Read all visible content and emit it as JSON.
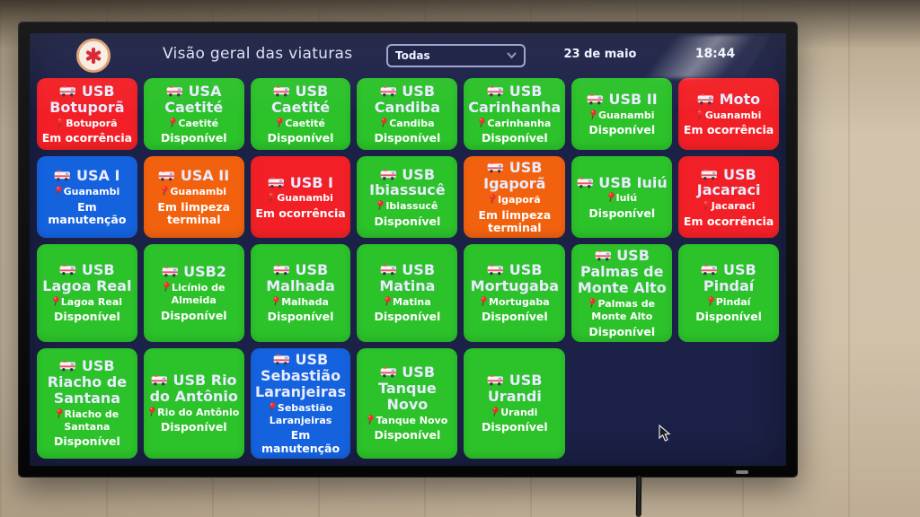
{
  "header": {
    "logo": "samu-star-of-life",
    "title": "Visão geral das viaturas",
    "filter_value": "Todas",
    "date": "23 de maio",
    "time": "18:44"
  },
  "status_colors": {
    "available": "#2cc22a",
    "occurrence": "#f22026",
    "maintenance": "#1562de",
    "cleaning": "#f2620e"
  },
  "status_labels": {
    "available": "Disponível",
    "occurrence": "Em ocorrência",
    "maintenance": "Em manutenção",
    "cleaning": "Em limpeza terminal"
  },
  "cards": [
    {
      "title": "USB Botuporã",
      "location": "Botuporã",
      "status": "Em ocorrência",
      "state": "occurrence"
    },
    {
      "title": "USA Caetité",
      "location": "Caetité",
      "status": "Disponível",
      "state": "available"
    },
    {
      "title": "USB Caetité",
      "location": "Caetité",
      "status": "Disponível",
      "state": "available"
    },
    {
      "title": "USB Candiba",
      "location": "Candiba",
      "status": "Disponível",
      "state": "available"
    },
    {
      "title": "USB Carinhanha",
      "location": "Carinhanha",
      "status": "Disponível",
      "state": "available"
    },
    {
      "title": "USB II",
      "location": "Guanambi",
      "status": "Disponível",
      "state": "available"
    },
    {
      "title": "Moto",
      "location": "Guanambi",
      "status": "Em ocorrência",
      "state": "occurrence"
    },
    {
      "title": "USA I",
      "location": "Guanambi",
      "status": "Em manutenção",
      "state": "maintenance"
    },
    {
      "title": "USA II",
      "location": "Guanambi",
      "status": "Em limpeza terminal",
      "state": "cleaning"
    },
    {
      "title": "USB I",
      "location": "Guanambi",
      "status": "Em ocorrência",
      "state": "occurrence"
    },
    {
      "title": "USB Ibiassucê",
      "location": "Ibiassucê",
      "status": "Disponível",
      "state": "available"
    },
    {
      "title": "USB Igaporã",
      "location": "Igaporã",
      "status": "Em limpeza terminal",
      "state": "cleaning"
    },
    {
      "title": "USB Iuiú",
      "location": "Iuiú",
      "status": "Disponível",
      "state": "available"
    },
    {
      "title": "USB Jacaraci",
      "location": "Jacaraci",
      "status": "Em ocorrência",
      "state": "occurrence"
    },
    {
      "title": "USB Lagoa Real",
      "location": "Lagoa Real",
      "status": "Disponível",
      "state": "available"
    },
    {
      "title": "USB2",
      "location": "Licínio de Almeida",
      "status": "Disponível",
      "state": "available"
    },
    {
      "title": "USB Malhada",
      "location": "Malhada",
      "status": "Disponível",
      "state": "available"
    },
    {
      "title": "USB Matina",
      "location": "Matina",
      "status": "Disponível",
      "state": "available"
    },
    {
      "title": "USB Mortugaba",
      "location": "Mortugaba",
      "status": "Disponível",
      "state": "available"
    },
    {
      "title": "USB Palmas de Monte Alto",
      "location": "Palmas de Monte Alto",
      "status": "Disponível",
      "state": "available"
    },
    {
      "title": "USB Pindaí",
      "location": "Pindaí",
      "status": "Disponível",
      "state": "available"
    },
    {
      "title": "USB Riacho de Santana",
      "location": "Riacho de Santana",
      "status": "Disponível",
      "state": "available"
    },
    {
      "title": "USB Rio do Antônio",
      "location": "Rio do Antônio",
      "status": "Disponível",
      "state": "available"
    },
    {
      "title": "USB Sebastião Laranjeiras",
      "location": "Sebastião Laranjeiras",
      "status": "Em manutenção",
      "state": "maintenance"
    },
    {
      "title": "USB Tanque Novo",
      "location": "Tanque Novo",
      "status": "Disponível",
      "state": "available"
    },
    {
      "title": "USB Urandi",
      "location": "Urandi",
      "status": "Disponível",
      "state": "available"
    }
  ]
}
